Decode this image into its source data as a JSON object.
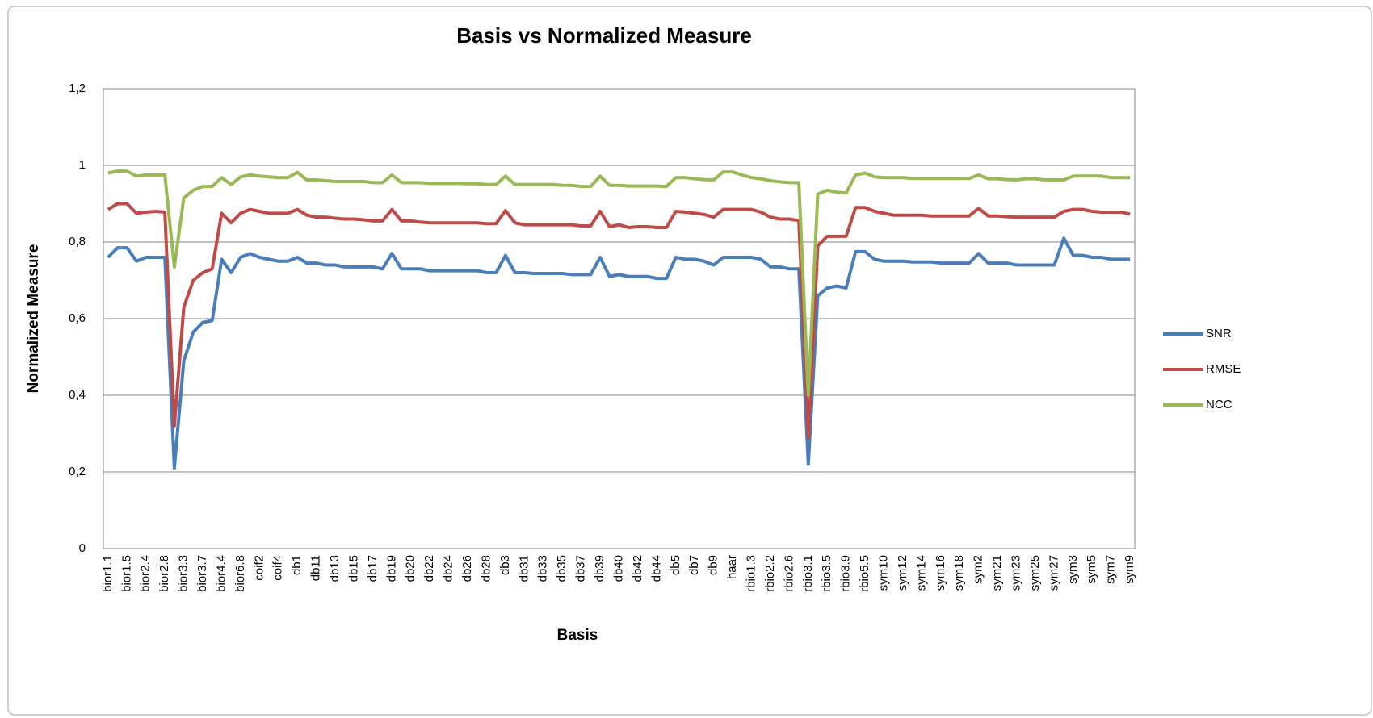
{
  "chart_data": {
    "type": "line",
    "title": "Basis vs Normalized Measure",
    "x_label": "Basis",
    "y_label": "Normalized Measure",
    "categories": [
      "bior1.1",
      null,
      "bior1.5",
      null,
      "bior2.4",
      null,
      "bior2.8",
      null,
      "bior3.3",
      null,
      "bior3.7",
      null,
      "bior4.4",
      null,
      "bior6.8",
      null,
      "coif2",
      null,
      "coif4",
      null,
      "db1",
      null,
      "db11",
      null,
      "db13",
      null,
      "db15",
      null,
      "db17",
      null,
      "db19",
      null,
      "db20",
      null,
      "db22",
      null,
      "db24",
      null,
      "db26",
      null,
      "db28",
      null,
      "db3",
      null,
      "db31",
      null,
      "db33",
      null,
      "db35",
      null,
      "db37",
      null,
      "db39",
      null,
      "db40",
      null,
      "db42",
      null,
      "db44",
      null,
      "db5",
      null,
      "db7",
      null,
      "db9",
      null,
      "haar",
      null,
      "rbio1.3",
      null,
      "rbio2.2",
      null,
      "rbio2.6",
      null,
      "rbio3.1",
      null,
      "rbio3.5",
      null,
      "rbio3.9",
      null,
      "rbio5.5",
      null,
      "sym10",
      null,
      "sym12",
      null,
      "sym14",
      null,
      "sym16",
      null,
      "sym18",
      null,
      "sym2",
      null,
      "sym21",
      null,
      "sym23",
      null,
      "sym25",
      null,
      "sym27",
      null,
      "sym3",
      null,
      "sym5",
      null,
      "sym7",
      null,
      "sym9"
    ],
    "series": [
      {
        "name": "SNR",
        "color": "#4a7ebb",
        "values": [
          0.76,
          0.785,
          0.785,
          0.75,
          0.76,
          0.76,
          0.76,
          0.21,
          0.49,
          0.565,
          0.59,
          0.595,
          0.755,
          0.72,
          0.76,
          0.77,
          0.76,
          0.755,
          0.75,
          0.75,
          0.76,
          0.745,
          0.745,
          0.74,
          0.74,
          0.735,
          0.735,
          0.735,
          0.735,
          0.73,
          0.77,
          0.73,
          0.73,
          0.73,
          0.725,
          0.725,
          0.725,
          0.725,
          0.725,
          0.725,
          0.72,
          0.72,
          0.765,
          0.72,
          0.72,
          0.718,
          0.718,
          0.718,
          0.718,
          0.715,
          0.715,
          0.715,
          0.76,
          0.71,
          0.715,
          0.71,
          0.71,
          0.71,
          0.705,
          0.705,
          0.76,
          0.755,
          0.755,
          0.75,
          0.74,
          0.76,
          0.76,
          0.76,
          0.76,
          0.755,
          0.735,
          0.735,
          0.73,
          0.73,
          0.22,
          0.66,
          0.68,
          0.685,
          0.68,
          0.775,
          0.775,
          0.755,
          0.75,
          0.75,
          0.75,
          0.748,
          0.748,
          0.748,
          0.745,
          0.745,
          0.745,
          0.745,
          0.77,
          0.745,
          0.745,
          0.745,
          0.74,
          0.74,
          0.74,
          0.74,
          0.74,
          0.81,
          0.765,
          0.765,
          0.76,
          0.76,
          0.755,
          0.755,
          0.755
        ]
      },
      {
        "name": "RMSE",
        "color": "#be4b48",
        "values": [
          0.885,
          0.9,
          0.9,
          0.875,
          0.878,
          0.88,
          0.878,
          0.32,
          0.63,
          0.7,
          0.72,
          0.73,
          0.875,
          0.85,
          0.875,
          0.885,
          0.88,
          0.875,
          0.875,
          0.875,
          0.885,
          0.87,
          0.865,
          0.865,
          0.862,
          0.86,
          0.86,
          0.858,
          0.855,
          0.855,
          0.885,
          0.855,
          0.855,
          0.852,
          0.85,
          0.85,
          0.85,
          0.85,
          0.85,
          0.85,
          0.848,
          0.848,
          0.882,
          0.85,
          0.845,
          0.845,
          0.845,
          0.845,
          0.845,
          0.845,
          0.842,
          0.842,
          0.88,
          0.84,
          0.845,
          0.838,
          0.84,
          0.84,
          0.838,
          0.838,
          0.88,
          0.878,
          0.875,
          0.872,
          0.865,
          0.885,
          0.885,
          0.885,
          0.885,
          0.878,
          0.865,
          0.86,
          0.86,
          0.856,
          0.29,
          0.79,
          0.815,
          0.815,
          0.815,
          0.89,
          0.89,
          0.88,
          0.875,
          0.87,
          0.87,
          0.87,
          0.87,
          0.868,
          0.868,
          0.868,
          0.868,
          0.868,
          0.888,
          0.868,
          0.868,
          0.866,
          0.865,
          0.865,
          0.865,
          0.865,
          0.865,
          0.88,
          0.885,
          0.885,
          0.88,
          0.878,
          0.878,
          0.878,
          0.873
        ]
      },
      {
        "name": "NCC",
        "color": "#98b954",
        "values": [
          0.98,
          0.985,
          0.985,
          0.972,
          0.975,
          0.975,
          0.975,
          0.735,
          0.915,
          0.935,
          0.945,
          0.945,
          0.968,
          0.95,
          0.97,
          0.975,
          0.972,
          0.97,
          0.968,
          0.968,
          0.982,
          0.962,
          0.962,
          0.96,
          0.958,
          0.958,
          0.958,
          0.958,
          0.955,
          0.955,
          0.975,
          0.955,
          0.955,
          0.955,
          0.953,
          0.953,
          0.953,
          0.953,
          0.952,
          0.952,
          0.95,
          0.95,
          0.972,
          0.95,
          0.95,
          0.95,
          0.95,
          0.95,
          0.948,
          0.948,
          0.945,
          0.945,
          0.972,
          0.948,
          0.948,
          0.946,
          0.946,
          0.946,
          0.946,
          0.945,
          0.968,
          0.968,
          0.965,
          0.963,
          0.962,
          0.983,
          0.983,
          0.975,
          0.968,
          0.965,
          0.96,
          0.957,
          0.955,
          0.955,
          0.4,
          0.925,
          0.935,
          0.93,
          0.928,
          0.975,
          0.98,
          0.97,
          0.968,
          0.968,
          0.968,
          0.966,
          0.966,
          0.966,
          0.966,
          0.966,
          0.966,
          0.966,
          0.975,
          0.965,
          0.965,
          0.963,
          0.962,
          0.965,
          0.965,
          0.962,
          0.962,
          0.962,
          0.972,
          0.972,
          0.972,
          0.972,
          0.968,
          0.968,
          0.968
        ]
      }
    ],
    "ylim": [
      0,
      1.2
    ],
    "yticks": [
      0,
      {
        "value": 0.2,
        "label": "0,2"
      },
      {
        "value": 0.4,
        "label": "0,4"
      },
      {
        "value": 0.6,
        "label": "0,6"
      },
      {
        "value": 0.8,
        "label": "0,8"
      },
      1,
      {
        "value": 1.2,
        "label": "1,2"
      }
    ],
    "grid": true,
    "legend": "right"
  }
}
